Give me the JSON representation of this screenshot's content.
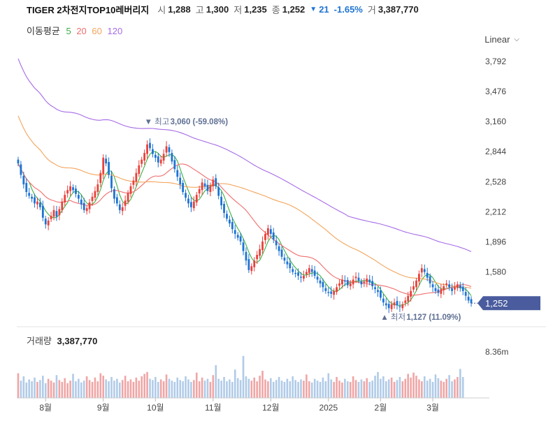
{
  "quote": {
    "name": "TIGER 2차전지TOP10레버리지",
    "open_label": "시",
    "open": "1,288",
    "high_label": "고",
    "high": "1,300",
    "low_label": "저",
    "low": "1,235",
    "close_label": "종",
    "close": "1,252",
    "change_symbol": "▼",
    "change": "21",
    "change_pct": "-1.65%",
    "volume_label": "거",
    "volume": "3,387,770"
  },
  "ma_legend": {
    "title": "이동평균",
    "items": [
      {
        "label": "5",
        "color": "#3cb043"
      },
      {
        "label": "20",
        "color": "#f06e6e"
      },
      {
        "label": "60",
        "color": "#f3a45c"
      },
      {
        "label": "120",
        "color": "#a66be6"
      }
    ]
  },
  "scale_toggle": {
    "label": "Linear"
  },
  "volume_panel": {
    "title": "거래량",
    "value": "3,387,770",
    "axis_label": "8.36m"
  },
  "colors": {
    "up": "#e8413b",
    "down": "#1e73d2",
    "up_volume": "#f0a5a5",
    "down_volume": "#b0cbe8",
    "price_tag": "#4a5c9e",
    "annotation": "#5e6f93"
  },
  "chart_data": {
    "type": "candlestick",
    "y_ticks": [
      "3,792",
      "3,476",
      "3,160",
      "2,844",
      "2,528",
      "2,212",
      "1,896",
      "1,580"
    ],
    "y_tick_values": [
      3792,
      3476,
      3160,
      2844,
      2528,
      2212,
      1896,
      1580
    ],
    "ylim": [
      1100,
      3850
    ],
    "x_ticks": [
      "8월",
      "9월",
      "10월",
      "11월",
      "12월",
      "2025",
      "2월",
      "3월"
    ],
    "x_tick_index": [
      10,
      31,
      50,
      71,
      92,
      113,
      132,
      151
    ],
    "last_price_label": "1,252",
    "last_price": 1252,
    "high_annotation": {
      "prefix": "▼ 최고",
      "text": "3,060 (-59.08%)",
      "value": 3060,
      "index": 47
    },
    "low_annotation": {
      "prefix": "▲ 최저",
      "text": "1,127 (11.09%)",
      "value": 1127,
      "index": 133
    },
    "volume_max": 8360000,
    "ma_periods": [
      5,
      20,
      60,
      120
    ],
    "series_close": [
      2720,
      2600,
      2500,
      2420,
      2380,
      2350,
      2300,
      2320,
      2260,
      2150,
      2080,
      2120,
      2170,
      2230,
      2160,
      2240,
      2320,
      2390,
      2440,
      2480,
      2440,
      2400,
      2350,
      2290,
      2230,
      2250,
      2310,
      2370,
      2430,
      2500,
      2620,
      2780,
      2720,
      2600,
      2460,
      2350,
      2300,
      2230,
      2260,
      2330,
      2410,
      2480,
      2540,
      2620,
      2700,
      2760,
      2830,
      2920,
      2880,
      2820,
      2780,
      2730,
      2760,
      2820,
      2900,
      2840,
      2740,
      2660,
      2580,
      2500,
      2420,
      2360,
      2300,
      2260,
      2320,
      2390,
      2450,
      2520,
      2480,
      2430,
      2490,
      2550,
      2480,
      2380,
      2280,
      2200,
      2140,
      2090,
      2030,
      1980,
      1940,
      1900,
      1800,
      1700,
      1600,
      1640,
      1700,
      1760,
      1820,
      1900,
      1980,
      2040,
      1980,
      1920,
      1860,
      1800,
      1740,
      1700,
      1660,
      1620,
      1580,
      1560,
      1540,
      1520,
      1540,
      1580,
      1620,
      1580,
      1540,
      1500,
      1460,
      1420,
      1380,
      1360,
      1350,
      1380,
      1420,
      1460,
      1500,
      1480,
      1440,
      1460,
      1500,
      1530,
      1490,
      1450,
      1480,
      1510,
      1470,
      1430,
      1400,
      1370,
      1310,
      1260,
      1230,
      1200,
      1240,
      1260,
      1230,
      1210,
      1240,
      1280,
      1330,
      1380,
      1430,
      1490,
      1560,
      1620,
      1580,
      1520,
      1460,
      1420,
      1380,
      1360,
      1400,
      1430,
      1460,
      1420,
      1380,
      1420,
      1450,
      1410,
      1380,
      1330,
      1280,
      1252
    ],
    "series_volume": [
      4000000,
      2800000,
      3500000,
      2500000,
      3000000,
      2700000,
      3300000,
      2600000,
      2900000,
      3600000,
      2400000,
      3100000,
      2800000,
      2500000,
      3700000,
      2900000,
      2600000,
      3200000,
      2400000,
      2800000,
      3900000,
      2700000,
      3100000,
      2500000,
      2800000,
      3500000,
      2900000,
      2600000,
      3300000,
      2700000,
      4000000,
      3600000,
      3000000,
      2700000,
      3400000,
      2800000,
      3100000,
      2500000,
      2900000,
      3600000,
      2700000,
      3000000,
      2600000,
      3300000,
      2800000,
      3500000,
      3900000,
      4200000,
      3100000,
      2900000,
      3400000,
      2600000,
      3000000,
      2700000,
      3800000,
      3100000,
      2800000,
      2600000,
      3300000,
      2900000,
      2700000,
      3500000,
      3000000,
      2600000,
      2900000,
      4100000,
      2700000,
      3300000,
      2800000,
      3100000,
      2600000,
      3700000,
      5300000,
      3100000,
      2800000,
      3400000,
      2700000,
      3000000,
      2600000,
      4600000,
      3200000,
      2900000,
      6800000,
      3500000,
      3100000,
      2800000,
      3300000,
      2700000,
      3600000,
      4400000,
      3000000,
      2700000,
      3200000,
      2600000,
      2900000,
      3400000,
      2800000,
      2600000,
      3100000,
      2700000,
      3500000,
      2900000,
      2600000,
      3000000,
      2800000,
      3800000,
      2700000,
      2500000,
      3100000,
      2800000,
      2600000,
      3300000,
      2700000,
      4000000,
      3000000,
      2600000,
      3400000,
      2800000,
      2500000,
      3100000,
      2700000,
      2600000,
      3500000,
      2900000,
      2600000,
      3000000,
      2700000,
      3200000,
      2600000,
      2800000,
      3600000,
      4200000,
      3100000,
      3500000,
      2700000,
      3000000,
      3300000,
      2600000,
      2900000,
      3400000,
      2700000,
      3100000,
      3900000,
      3300000,
      4100000,
      3600000,
      3000000,
      2700000,
      3500000,
      2800000,
      3100000,
      2600000,
      3800000,
      3200000,
      2800000,
      2600000,
      3100000,
      3700000,
      2700000,
      3000000,
      3400000,
      4700000,
      3387770
    ]
  }
}
